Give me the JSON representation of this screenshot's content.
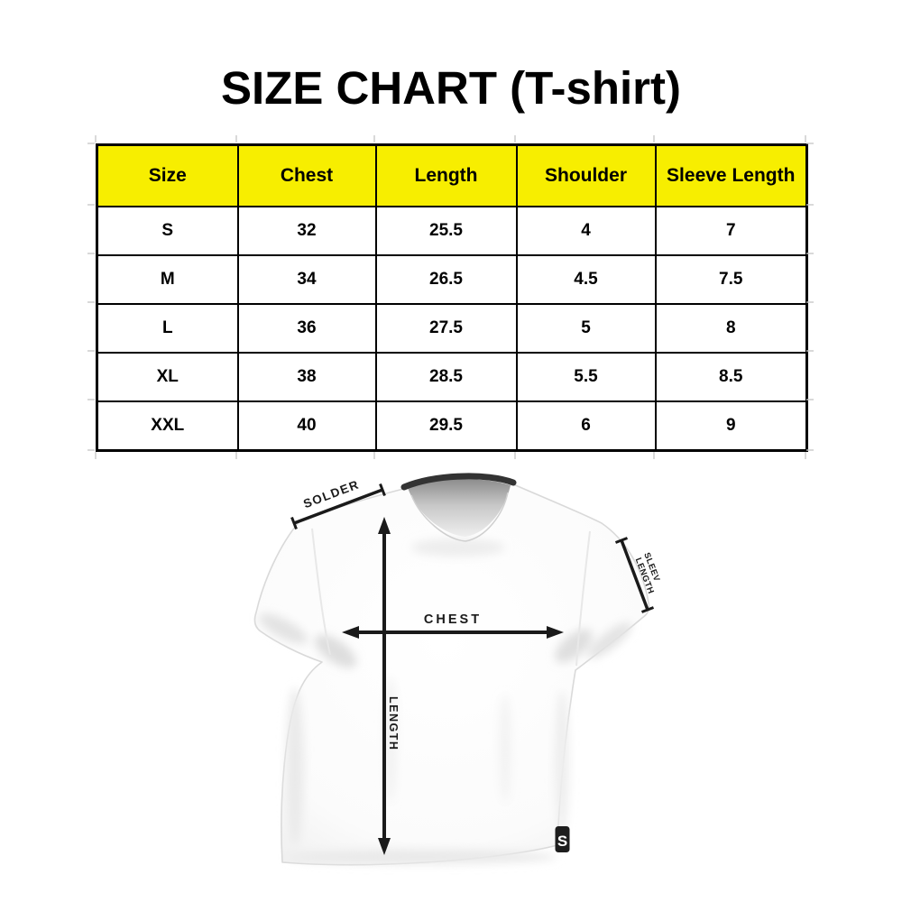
{
  "title": "SIZE CHART (T-shirt)",
  "size_table": {
    "header_bg": "#f7ee00",
    "columns": [
      "Size",
      "Chest",
      "Length",
      "Shoulder",
      "Sleeve Length"
    ],
    "rows": [
      [
        "S",
        "32",
        "25.5",
        "4",
        "7"
      ],
      [
        "M",
        "34",
        "26.5",
        "4.5",
        "7.5"
      ],
      [
        "L",
        "36",
        "27.5",
        "5",
        "8"
      ],
      [
        "XL",
        "38",
        "28.5",
        "5.5",
        "8.5"
      ],
      [
        "XXL",
        "40",
        "29.5",
        "6",
        "9"
      ]
    ]
  },
  "diagram": {
    "shoulder_label": "SOLDER",
    "sleeve_label_line1": "SLEEV",
    "sleeve_label_line2": "LENGTH",
    "chest_label": "CHEST",
    "length_label": "LENGTH",
    "logo_letter": "S",
    "annotation_color": "#1a1a1a",
    "collar_color": "#333333"
  }
}
